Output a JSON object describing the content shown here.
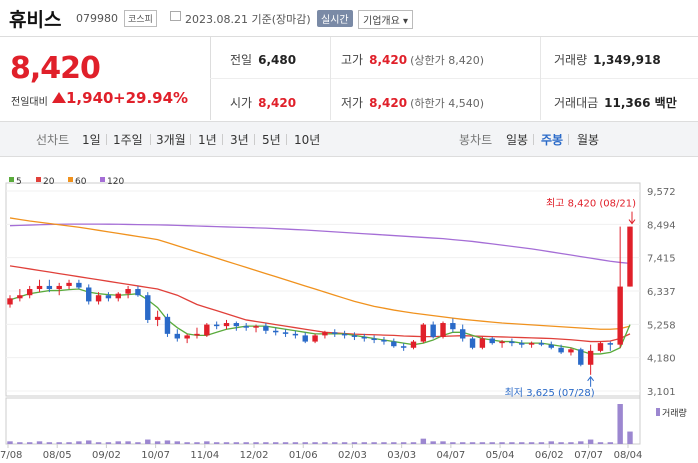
{
  "header": {
    "name": "휴비스",
    "code": "079980",
    "market": "코스피",
    "date": "2023.08.21 기준(장마감)",
    "realtime": "실시간",
    "company_info": "기업개요 ▾"
  },
  "price": {
    "current": "8,420",
    "change_label": "전일대비",
    "change": "1,940",
    "change_pct": "+29.94%"
  },
  "stats": {
    "prev_label": "전일",
    "prev": "6,480",
    "high_label": "고가",
    "high": "8,420",
    "high_note": "(상한가 8,420)",
    "volume_label": "거래량",
    "volume": "1,349,918",
    "open_label": "시가",
    "open": "8,420",
    "low_label": "저가",
    "low": "8,420",
    "low_note": "(하한가 4,540)",
    "amount_label": "거래대금",
    "amount": "11,366 백만"
  },
  "tabs": {
    "line_chart": "선차트",
    "periods": [
      "1일",
      "1주일",
      "3개월",
      "1년",
      "3년",
      "5년",
      "10년"
    ],
    "candle_chart": "봉차트",
    "candle_periods": [
      "일봉",
      "주봉",
      "월봉"
    ],
    "active_candle": "주봉"
  },
  "colors": {
    "up": "#e0202a",
    "down": "#2a6ac8",
    "ma5": "#5aab3c",
    "ma20": "#e0403a",
    "ma60": "#f0921e",
    "ma120": "#a56ed6"
  },
  "chart_data": {
    "type": "candlestick",
    "legend": [
      {
        "name": "5",
        "color": "#5aab3c"
      },
      {
        "name": "20",
        "color": "#e0403a"
      },
      {
        "name": "60",
        "color": "#f0921e"
      },
      {
        "name": "120",
        "color": "#a56ed6"
      }
    ],
    "y_ticks": [
      "9,572",
      "8,494",
      "7,415",
      "6,337",
      "5,258",
      "4,180",
      "3,101"
    ],
    "y_tick_values": [
      9572,
      8494,
      7415,
      6337,
      5258,
      4180,
      3101
    ],
    "x_ticks": [
      "07/08",
      "08/05",
      "09/02",
      "10/07",
      "11/04",
      "12/02",
      "01/06",
      "02/03",
      "03/03",
      "04/07",
      "05/04",
      "06/02",
      "07/07",
      "08/04"
    ],
    "annotations": {
      "high": "최고 8,420 (08/21)",
      "low": "최저 3,625 (07/28)"
    },
    "volume_label": "거래량",
    "candles": [
      [
        5900,
        6200,
        5800,
        6100
      ],
      [
        6100,
        6400,
        6000,
        6200
      ],
      [
        6200,
        6500,
        6100,
        6400
      ],
      [
        6400,
        6700,
        6300,
        6500
      ],
      [
        6500,
        6700,
        6300,
        6400
      ],
      [
        6400,
        6600,
        6200,
        6500
      ],
      [
        6500,
        6700,
        6400,
        6600
      ],
      [
        6600,
        6700,
        6400,
        6450
      ],
      [
        6450,
        6550,
        5900,
        6000
      ],
      [
        6000,
        6300,
        5900,
        6200
      ],
      [
        6200,
        6300,
        6000,
        6100
      ],
      [
        6100,
        6300,
        6000,
        6250
      ],
      [
        6250,
        6500,
        6100,
        6400
      ],
      [
        6400,
        6500,
        6150,
        6200
      ],
      [
        6200,
        6300,
        5300,
        5400
      ],
      [
        5400,
        5700,
        5200,
        5500
      ],
      [
        5500,
        5600,
        4850,
        4950
      ],
      [
        4950,
        5100,
        4700,
        4800
      ],
      [
        4800,
        4950,
        4650,
        4900
      ],
      [
        4900,
        5150,
        4800,
        4950
      ],
      [
        4900,
        5300,
        4850,
        5250
      ],
      [
        5250,
        5350,
        5100,
        5200
      ],
      [
        5200,
        5400,
        5100,
        5300
      ],
      [
        5300,
        5350,
        5050,
        5200
      ],
      [
        5200,
        5300,
        5050,
        5150
      ],
      [
        5150,
        5250,
        5000,
        5200
      ],
      [
        5200,
        5300,
        4950,
        5050
      ],
      [
        5050,
        5150,
        4900,
        5000
      ],
      [
        5000,
        5100,
        4850,
        4950
      ],
      [
        4950,
        5050,
        4800,
        4900
      ],
      [
        4900,
        5000,
        4650,
        4700
      ],
      [
        4700,
        4950,
        4650,
        4900
      ],
      [
        4900,
        5050,
        4800,
        5000
      ],
      [
        5000,
        5100,
        4850,
        4950
      ],
      [
        4950,
        5050,
        4800,
        4900
      ],
      [
        4900,
        5000,
        4750,
        4850
      ],
      [
        4850,
        4950,
        4700,
        4800
      ],
      [
        4800,
        4900,
        4650,
        4750
      ],
      [
        4750,
        4850,
        4600,
        4700
      ],
      [
        4700,
        4800,
        4500,
        4550
      ],
      [
        4550,
        4650,
        4400,
        4500
      ],
      [
        4500,
        4750,
        4450,
        4700
      ],
      [
        4700,
        5300,
        4650,
        5250
      ],
      [
        5250,
        5350,
        4800,
        4850
      ],
      [
        4850,
        5350,
        4800,
        5300
      ],
      [
        5300,
        5450,
        5000,
        5100
      ],
      [
        5100,
        5250,
        4700,
        4800
      ],
      [
        4800,
        4850,
        4450,
        4500
      ],
      [
        4500,
        4850,
        4450,
        4800
      ],
      [
        4800,
        4850,
        4600,
        4650
      ],
      [
        4650,
        4750,
        4500,
        4700
      ],
      [
        4700,
        4800,
        4550,
        4650
      ],
      [
        4650,
        4750,
        4500,
        4600
      ],
      [
        4600,
        4700,
        4500,
        4650
      ],
      [
        4650,
        4750,
        4550,
        4600
      ],
      [
        4600,
        4700,
        4450,
        4500
      ],
      [
        4500,
        4600,
        4300,
        4350
      ],
      [
        4350,
        4500,
        4250,
        4450
      ],
      [
        4450,
        4500,
        3900,
        3950
      ],
      [
        3950,
        4600,
        3625,
        4400
      ],
      [
        4400,
        4700,
        4350,
        4650
      ],
      [
        4650,
        4700,
        4400,
        4600
      ],
      [
        4600,
        8420,
        4500,
        6480
      ],
      [
        6480,
        8420,
        6480,
        8420
      ]
    ],
    "ma5": [
      6050,
      6150,
      6250,
      6300,
      6350,
      6350,
      6380,
      6400,
      6300,
      6250,
      6220,
      6200,
      6220,
      6250,
      6050,
      5800,
      5400,
      5150,
      4950,
      4900,
      4900,
      5000,
      5100,
      5150,
      5200,
      5200,
      5200,
      5150,
      5100,
      5050,
      5000,
      4950,
      4950,
      4950,
      4950,
      4900,
      4850,
      4800,
      4750,
      4700,
      4650,
      4600,
      4650,
      4750,
      4900,
      5000,
      5000,
      4900,
      4800,
      4750,
      4700,
      4700,
      4650,
      4650,
      4650,
      4600,
      4550,
      4500,
      4400,
      4300,
      4300,
      4350,
      4500,
      5250
    ],
    "ma20": [
      7150,
      7100,
      7050,
      7000,
      6950,
      6900,
      6850,
      6800,
      6750,
      6700,
      6650,
      6600,
      6550,
      6500,
      6450,
      6400,
      6300,
      6200,
      6050,
      5900,
      5800,
      5700,
      5600,
      5500,
      5400,
      5350,
      5300,
      5250,
      5200,
      5150,
      5100,
      5050,
      5000,
      4980,
      4960,
      4940,
      4930,
      4920,
      4910,
      4900,
      4880,
      4870,
      4860,
      4860,
      4870,
      4880,
      4890,
      4880,
      4870,
      4860,
      4850,
      4840,
      4830,
      4820,
      4810,
      4800,
      4780,
      4760,
      4730,
      4700,
      4700,
      4720,
      4800,
      4950
    ],
    "ma120": [
      8450,
      8460,
      8470,
      8480,
      8490,
      8495,
      8500,
      8500,
      8500,
      8500,
      8498,
      8495,
      8490,
      8485,
      8480,
      8475,
      8470,
      8460,
      8450,
      8440,
      8430,
      8420,
      8410,
      8400,
      8390,
      8380,
      8370,
      8355,
      8340,
      8325,
      8310,
      8290,
      8270,
      8250,
      8230,
      8210,
      8190,
      8170,
      8150,
      8130,
      8110,
      8090,
      8070,
      8050,
      8030,
      8000,
      7970,
      7940,
      7900,
      7860,
      7820,
      7780,
      7740,
      7700,
      7650,
      7600,
      7550,
      7500,
      7450,
      7400,
      7350,
      7300,
      7260,
      7230
    ],
    "ma60": [
      8700,
      8650,
      8600,
      8560,
      8520,
      8480,
      8440,
      8400,
      8350,
      8300,
      8250,
      8200,
      8150,
      8100,
      8050,
      8000,
      7900,
      7800,
      7700,
      7600,
      7500,
      7400,
      7300,
      7200,
      7100,
      7000,
      6900,
      6800,
      6700,
      6600,
      6500,
      6400,
      6300,
      6200,
      6100,
      6000,
      5920,
      5840,
      5780,
      5720,
      5670,
      5620,
      5580,
      5540,
      5500,
      5460,
      5420,
      5390,
      5360,
      5330,
      5300,
      5280,
      5260,
      5240,
      5220,
      5200,
      5180,
      5160,
      5140,
      5120,
      5100,
      5100,
      5120,
      5200
    ],
    "volume": [
      3,
      2,
      2,
      3,
      2,
      2,
      2,
      3,
      4,
      2,
      2,
      3,
      3,
      2,
      5,
      3,
      4,
      3,
      2,
      2,
      3,
      2,
      2,
      2,
      2,
      2,
      2,
      2,
      2,
      2,
      2,
      2,
      2,
      2,
      2,
      2,
      2,
      2,
      2,
      2,
      2,
      2,
      6,
      3,
      3,
      2,
      2,
      2,
      2,
      2,
      2,
      2,
      2,
      2,
      2,
      3,
      2,
      2,
      3,
      5,
      2,
      2,
      45,
      14
    ]
  }
}
